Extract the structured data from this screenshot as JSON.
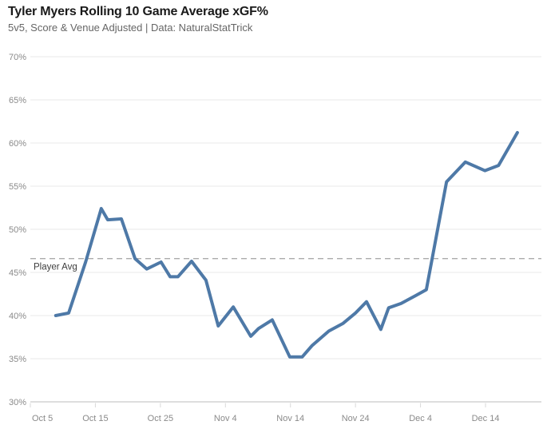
{
  "header": {
    "title": "Tyler Myers Rolling 10 Game Average xGF%",
    "subtitle": "5v5, Score & Venue Adjusted | Data: NaturalStatTrick"
  },
  "chart_data": {
    "type": "line",
    "title": "Tyler Myers Rolling 10 Game Average xGF%",
    "subtitle": "5v5, Score & Venue Adjusted | Data: NaturalStatTrick",
    "xlabel": "",
    "ylabel": "",
    "grid": "horizontal",
    "legend": "none",
    "x_axis": {
      "tick_labels": [
        "Oct 5",
        "Oct 15",
        "Oct 25",
        "Nov 4",
        "Nov 14",
        "Nov 24",
        "Dec 4",
        "Dec 14"
      ],
      "tick_days": [
        0,
        10,
        20,
        30,
        40,
        50,
        60,
        70
      ],
      "range_days": [
        0,
        78.6
      ],
      "unit": "days from Oct 5"
    },
    "y_axis": {
      "tick_labels": [
        "30%",
        "35%",
        "40%",
        "45%",
        "50%",
        "55%",
        "60%",
        "65%",
        "70%"
      ],
      "tick_values": [
        30,
        35,
        40,
        45,
        50,
        55,
        60,
        65,
        70
      ],
      "ylim": [
        30,
        70
      ],
      "unit": "%"
    },
    "reference_line": {
      "label": "Player Avg",
      "value": 46.6,
      "style": "dashed"
    },
    "series": [
      {
        "name": "Rolling 10 Game Average xGF%",
        "color": "#4e79a7",
        "x_days": [
          3.9,
          5.9,
          8.5,
          10.9,
          11.9,
          14.0,
          16.1,
          17.9,
          20.1,
          21.5,
          22.7,
          24.8,
          27.0,
          28.9,
          31.2,
          33.9,
          35.1,
          37.2,
          39.9,
          41.8,
          43.3,
          45.9,
          48.1,
          50.0,
          51.7,
          53.9,
          55.1,
          57.0,
          59.2,
          60.9,
          64.0,
          66.9,
          69.9,
          72.0,
          74.9
        ],
        "values": [
          40.0,
          40.3,
          46.2,
          52.4,
          51.1,
          51.2,
          46.6,
          45.4,
          46.2,
          44.5,
          44.5,
          46.3,
          44.1,
          38.8,
          41.0,
          37.6,
          38.5,
          39.5,
          35.2,
          35.2,
          36.5,
          38.2,
          39.1,
          40.3,
          41.6,
          38.4,
          40.9,
          41.4,
          42.3,
          43.0,
          55.5,
          57.8,
          56.8,
          57.4,
          61.2
        ]
      }
    ]
  },
  "colors": {
    "line": "#4e79a7",
    "reference_line": "#ababab",
    "grid": "#e9e9e9",
    "axis": "#c9c9c9",
    "tick": "#d9d9d9",
    "tick_label": "#8a8a8a",
    "title": "#1a1a1a",
    "subtitle": "#666666",
    "reference_label": "#3d3d3d",
    "background": "#ffffff"
  }
}
